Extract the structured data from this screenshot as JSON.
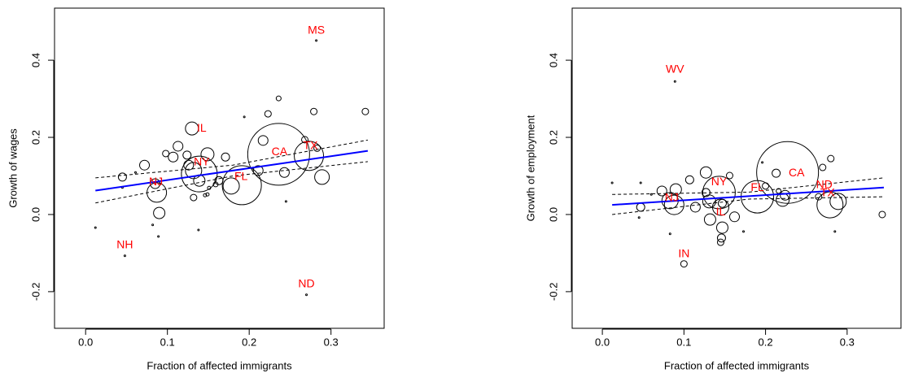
{
  "chart_data": [
    {
      "type": "scatter",
      "xlabel": "Fraction of affected immigrants",
      "ylabel": "Growth of wages",
      "xlim": [
        -0.038,
        0.365
      ],
      "ylim": [
        -0.295,
        0.535
      ],
      "xticks": [
        {
          "value": 0,
          "label": "0.0"
        },
        0.1,
        0.2,
        0.3
      ],
      "yticks": [
        -0.2,
        {
          "value": 0,
          "label": "0.0"
        },
        0.2,
        0.4
      ],
      "point_color": "#000000",
      "x": [
        0.012,
        0.045,
        0.045,
        0.061,
        0.072,
        0.085,
        0.087,
        0.09,
        0.082,
        0.089,
        0.048,
        0.098,
        0.107,
        0.113,
        0.124,
        0.126,
        0.132,
        0.13,
        0.149,
        0.139,
        0.132,
        0.139,
        0.146,
        0.149,
        0.151,
        0.159,
        0.163,
        0.138,
        0.171,
        0.178,
        0.191,
        0.194,
        0.211,
        0.217,
        0.223,
        0.236,
        0.236,
        0.243,
        0.245,
        0.268,
        0.273,
        0.279,
        0.282,
        0.27,
        0.289,
        0.342,
        0.283
      ],
      "y": [
        -0.034,
        0.097,
        0.07,
        0.109,
        0.128,
        0.08,
        0.057,
        0.004,
        -0.027,
        -0.057,
        -0.107,
        0.158,
        0.149,
        0.177,
        0.154,
        0.128,
        0.114,
        0.223,
        0.156,
        0.105,
        0.044,
        0.088,
        0.05,
        0.052,
        0.069,
        0.078,
        0.088,
        -0.04,
        0.149,
        0.074,
        0.076,
        0.253,
        0.114,
        0.192,
        0.261,
        0.301,
        0.156,
        0.109,
        0.034,
        0.194,
        0.152,
        0.267,
        0.451,
        -0.208,
        0.097,
        0.267,
        0.172
      ],
      "size": [
        1,
        5,
        1,
        1,
        6,
        6,
        12,
        7,
        1,
        1,
        1,
        4,
        6,
        6,
        5,
        6,
        10,
        8,
        8,
        22,
        4,
        7,
        2,
        2,
        2,
        3,
        5,
        1,
        5,
        10,
        24,
        1,
        6,
        6,
        4,
        3,
        38,
        6,
        1,
        4,
        18,
        4,
        1,
        1,
        9,
        4,
        4
      ],
      "fit": {
        "color": "#0000ff",
        "x": [
          0.012,
          0.345
        ],
        "y": [
          0.062,
          0.165
        ]
      },
      "bands": [
        {
          "x": [
            0.012,
            0.18,
            0.345
          ],
          "y": [
            0.095,
            0.128,
            0.193
          ]
        },
        {
          "x": [
            0.012,
            0.18,
            0.345
          ],
          "y": [
            0.03,
            0.1,
            0.137
          ]
        }
      ],
      "label_color": "#ff0000",
      "annotations": [
        {
          "text": "MS",
          "x": 0.282,
          "y": 0.476
        },
        {
          "text": "ND",
          "x": 0.27,
          "y": -0.181
        },
        {
          "text": "NH",
          "x": 0.048,
          "y": -0.08
        },
        {
          "text": "NJ",
          "x": 0.086,
          "y": 0.084
        },
        {
          "text": "IL",
          "x": 0.142,
          "y": 0.223
        },
        {
          "text": "NY",
          "x": 0.142,
          "y": 0.135
        },
        {
          "text": "FL",
          "x": 0.19,
          "y": 0.097
        },
        {
          "text": "CA",
          "x": 0.237,
          "y": 0.162
        },
        {
          "text": "TX",
          "x": 0.275,
          "y": 0.177
        }
      ]
    },
    {
      "type": "scatter",
      "xlabel": "Fraction of affected immigrants",
      "ylabel": "Growth of employment",
      "xlim": [
        -0.037,
        0.366
      ],
      "ylim": [
        -0.295,
        0.535
      ],
      "xticks": [
        {
          "value": 0,
          "label": "0.0"
        },
        0.1,
        0.2,
        0.3
      ],
      "yticks": [
        -0.2,
        {
          "value": 0,
          "label": "0.0"
        },
        0.2,
        0.4
      ],
      "point_color": "#000000",
      "x": [
        0.012,
        0.047,
        0.047,
        0.045,
        0.06,
        0.073,
        0.083,
        0.088,
        0.09,
        0.083,
        0.089,
        0.1,
        0.107,
        0.114,
        0.127,
        0.127,
        0.131,
        0.132,
        0.143,
        0.147,
        0.145,
        0.147,
        0.146,
        0.145,
        0.156,
        0.162,
        0.173,
        0.19,
        0.196,
        0.2,
        0.213,
        0.216,
        0.221,
        0.227,
        0.224,
        0.27,
        0.28,
        0.279,
        0.289,
        0.285,
        0.343,
        0.265
      ],
      "y": [
        0.082,
        0.019,
        0.082,
        -0.008,
        0.052,
        0.061,
        0.036,
        0.025,
        0.065,
        -0.05,
        0.345,
        -0.128,
        0.09,
        0.019,
        0.109,
        0.057,
        0.034,
        -0.013,
        0.057,
        0.029,
        0.019,
        -0.034,
        -0.061,
        -0.072,
        0.101,
        -0.006,
        -0.044,
        0.046,
        0.135,
        0.074,
        0.107,
        0.061,
        0.038,
        0.109,
        0.05,
        0.122,
        0.145,
        0.025,
        0.034,
        -0.044,
        0.0,
        0.046
      ],
      "size": [
        1,
        5,
        1,
        1,
        1,
        6,
        10,
        12,
        7,
        1,
        1,
        4,
        5,
        6,
        7,
        5,
        8,
        7,
        20,
        5,
        10,
        7,
        5,
        4,
        4,
        6,
        1,
        20,
        1,
        4,
        5,
        3,
        8,
        38,
        6,
        4,
        4,
        16,
        10,
        1,
        4,
        4
      ],
      "fit": {
        "color": "#0000ff",
        "x": [
          0.012,
          0.345
        ],
        "y": [
          0.025,
          0.07
        ]
      },
      "bands": [
        {
          "x": [
            0.012,
            0.18,
            0.345
          ],
          "y": [
            0.052,
            0.058,
            0.095
          ]
        },
        {
          "x": [
            0.012,
            0.18,
            0.345
          ],
          "y": [
            0.0,
            0.04,
            0.046
          ]
        }
      ],
      "label_color": "#ff0000",
      "annotations": [
        {
          "text": "WV",
          "x": 0.089,
          "y": 0.375
        },
        {
          "text": "IN",
          "x": 0.1,
          "y": -0.103
        },
        {
          "text": "NJ",
          "x": 0.085,
          "y": 0.042
        },
        {
          "text": "NY",
          "x": 0.143,
          "y": 0.084
        },
        {
          "text": "IL",
          "x": 0.145,
          "y": 0.006
        },
        {
          "text": "FL",
          "x": 0.19,
          "y": 0.069
        },
        {
          "text": "CA",
          "x": 0.238,
          "y": 0.107
        },
        {
          "text": "ND",
          "x": 0.272,
          "y": 0.076
        },
        {
          "text": "TX",
          "x": 0.276,
          "y": 0.055
        }
      ]
    }
  ]
}
